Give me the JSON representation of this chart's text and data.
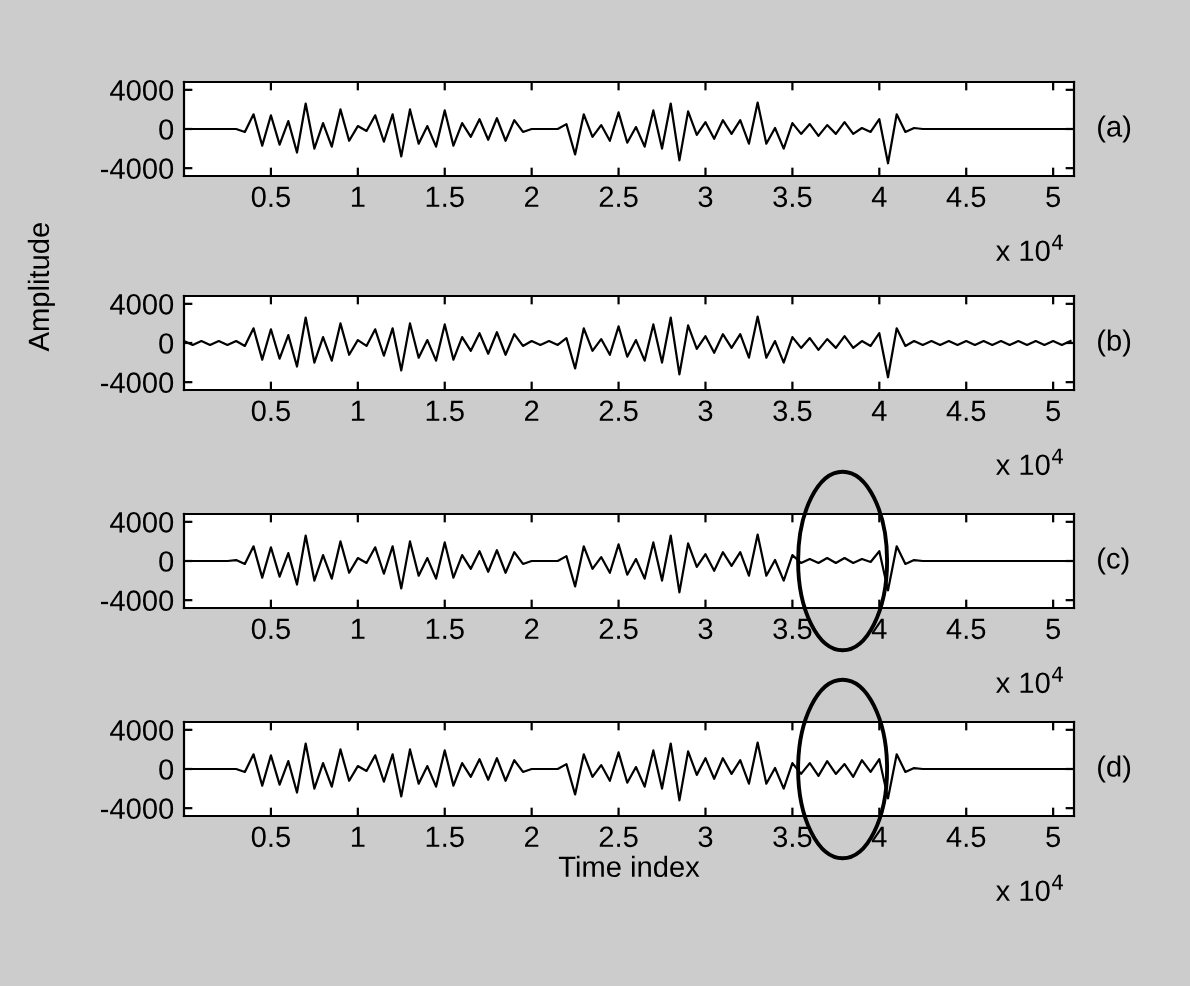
{
  "chart_data": [
    {
      "type": "line",
      "x": [
        0,
        0.05,
        0.1,
        0.15,
        0.2,
        0.25,
        0.3,
        0.35,
        0.4,
        0.45,
        0.5,
        0.55,
        0.6,
        0.65,
        0.7,
        0.75,
        0.8,
        0.85,
        0.9,
        0.95,
        1,
        1.05,
        1.1,
        1.15,
        1.2,
        1.25,
        1.3,
        1.35,
        1.4,
        1.45,
        1.5,
        1.55,
        1.6,
        1.65,
        1.7,
        1.75,
        1.8,
        1.85,
        1.9,
        1.95,
        2,
        2.05,
        2.1,
        2.15,
        2.2,
        2.25,
        2.3,
        2.35,
        2.4,
        2.45,
        2.5,
        2.55,
        2.6,
        2.65,
        2.7,
        2.75,
        2.8,
        2.85,
        2.9,
        2.95,
        3,
        3.05,
        3.1,
        3.15,
        3.2,
        3.25,
        3.3,
        3.35,
        3.4,
        3.45,
        3.5,
        3.55,
        3.6,
        3.65,
        3.7,
        3.75,
        3.8,
        3.85,
        3.9,
        3.95,
        4,
        4.05,
        4.1,
        4.15,
        4.2,
        4.25,
        4.3,
        4.35,
        4.4,
        4.45,
        4.5,
        4.55,
        4.6,
        4.65,
        4.7,
        4.75,
        4.8,
        4.85,
        4.9,
        4.95,
        5,
        5.05,
        5.1
      ],
      "series": [
        {
          "color": "#000000",
          "values": [
            0,
            0,
            0,
            0,
            0,
            0,
            0,
            -300,
            1500,
            -1700,
            1400,
            -1600,
            800,
            -2400,
            2600,
            -2000,
            600,
            -1800,
            2000,
            -1200,
            300,
            -200,
            1400,
            -1300,
            1500,
            -2800,
            2000,
            -1500,
            300,
            -1800,
            1900,
            -1700,
            600,
            -800,
            1000,
            -1100,
            1100,
            -1200,
            900,
            -300,
            0,
            0,
            0,
            0,
            500,
            -2600,
            1500,
            -800,
            400,
            -1200,
            1700,
            -1400,
            200,
            -1800,
            1900,
            -2000,
            2600,
            -3200,
            1800,
            -600,
            700,
            -1000,
            900,
            -500,
            900,
            -1500,
            2700,
            -1500,
            100,
            -2000,
            600,
            -500,
            500,
            -700,
            400,
            -500,
            700,
            -500,
            100,
            -300,
            1000,
            -3500,
            1500,
            -300,
            100,
            0,
            0,
            0,
            0,
            0,
            0,
            0,
            0,
            0,
            0,
            0,
            0,
            0,
            0,
            0,
            0,
            0,
            0
          ]
        }
      ],
      "xlim": [
        0,
        5.12
      ],
      "ylim": [
        -4800,
        4800
      ],
      "xticks": [
        0.5,
        1,
        1.5,
        2,
        2.5,
        3,
        3.5,
        4,
        4.5,
        5
      ],
      "yticks": [
        -4000,
        0,
        4000
      ],
      "line_style": "solid",
      "marker": "none",
      "annotations": [
        "(a)",
        "x 10$^{4}$"
      ]
    },
    {
      "type": "line",
      "x": [
        0,
        0.05,
        0.1,
        0.15,
        0.2,
        0.25,
        0.3,
        0.35,
        0.4,
        0.45,
        0.5,
        0.55,
        0.6,
        0.65,
        0.7,
        0.75,
        0.8,
        0.85,
        0.9,
        0.95,
        1,
        1.05,
        1.1,
        1.15,
        1.2,
        1.25,
        1.3,
        1.35,
        1.4,
        1.45,
        1.5,
        1.55,
        1.6,
        1.65,
        1.7,
        1.75,
        1.8,
        1.85,
        1.9,
        1.95,
        2,
        2.05,
        2.1,
        2.15,
        2.2,
        2.25,
        2.3,
        2.35,
        2.4,
        2.45,
        2.5,
        2.55,
        2.6,
        2.65,
        2.7,
        2.75,
        2.8,
        2.85,
        2.9,
        2.95,
        3,
        3.05,
        3.1,
        3.15,
        3.2,
        3.25,
        3.3,
        3.35,
        3.4,
        3.45,
        3.5,
        3.55,
        3.6,
        3.65,
        3.7,
        3.75,
        3.8,
        3.85,
        3.9,
        3.95,
        4,
        4.05,
        4.1,
        4.15,
        4.2,
        4.25,
        4.3,
        4.35,
        4.4,
        4.45,
        4.5,
        4.55,
        4.6,
        4.65,
        4.7,
        4.75,
        4.8,
        4.85,
        4.9,
        4.95,
        5,
        5.05,
        5.1
      ],
      "series": [
        {
          "color": "#000000",
          "values": [
            200,
            -200,
            200,
            -200,
            200,
            -200,
            200,
            -300,
            1500,
            -1700,
            1400,
            -1600,
            800,
            -2400,
            2600,
            -2000,
            600,
            -1800,
            2000,
            -1200,
            300,
            -300,
            1400,
            -1300,
            1500,
            -2800,
            2000,
            -1500,
            300,
            -1800,
            1900,
            -1700,
            600,
            -800,
            1000,
            -1100,
            1100,
            -1200,
            900,
            -300,
            200,
            -200,
            200,
            -200,
            500,
            -2600,
            1500,
            -800,
            400,
            -1200,
            1700,
            -1400,
            300,
            -1800,
            1900,
            -2000,
            2600,
            -3200,
            1800,
            -600,
            700,
            -1000,
            900,
            -500,
            900,
            -1500,
            2700,
            -1500,
            200,
            -2000,
            600,
            -500,
            500,
            -700,
            400,
            -500,
            700,
            -500,
            200,
            -300,
            1000,
            -3500,
            1500,
            -300,
            200,
            -200,
            200,
            -200,
            200,
            -200,
            200,
            -200,
            200,
            -200,
            200,
            -200,
            200,
            -200,
            200,
            -200,
            200,
            -200,
            200
          ]
        }
      ],
      "xlim": [
        0,
        5.12
      ],
      "ylim": [
        -4800,
        4800
      ],
      "xticks": [
        0.5,
        1,
        1.5,
        2,
        2.5,
        3,
        3.5,
        4,
        4.5,
        5
      ],
      "yticks": [
        -4000,
        0,
        4000
      ],
      "line_style": "solid",
      "marker": "none",
      "ylabel": "Amplitude",
      "annotations": [
        "(b)",
        "x 10$^{4}$"
      ]
    },
    {
      "type": "line",
      "x": [
        0,
        0.05,
        0.1,
        0.15,
        0.2,
        0.25,
        0.3,
        0.35,
        0.4,
        0.45,
        0.5,
        0.55,
        0.6,
        0.65,
        0.7,
        0.75,
        0.8,
        0.85,
        0.9,
        0.95,
        1,
        1.05,
        1.1,
        1.15,
        1.2,
        1.25,
        1.3,
        1.35,
        1.4,
        1.45,
        1.5,
        1.55,
        1.6,
        1.65,
        1.7,
        1.75,
        1.8,
        1.85,
        1.9,
        1.95,
        2,
        2.05,
        2.1,
        2.15,
        2.2,
        2.25,
        2.3,
        2.35,
        2.4,
        2.45,
        2.5,
        2.55,
        2.6,
        2.65,
        2.7,
        2.75,
        2.8,
        2.85,
        2.9,
        2.95,
        3,
        3.05,
        3.1,
        3.15,
        3.2,
        3.25,
        3.3,
        3.35,
        3.4,
        3.45,
        3.5,
        3.55,
        3.6,
        3.65,
        3.7,
        3.75,
        3.8,
        3.85,
        3.9,
        3.95,
        4,
        4.05,
        4.1,
        4.15,
        4.2,
        4.25,
        4.3,
        4.35,
        4.4,
        4.45,
        4.5,
        4.55,
        4.6,
        4.65,
        4.7,
        4.75,
        4.8,
        4.85,
        4.9,
        4.95,
        5,
        5.05,
        5.1
      ],
      "series": [
        {
          "color": "#000000",
          "values": [
            0,
            0,
            0,
            0,
            0,
            0,
            100,
            -300,
            1500,
            -1700,
            1400,
            -1600,
            800,
            -2400,
            2600,
            -2000,
            600,
            -1800,
            2000,
            -1200,
            300,
            -200,
            1400,
            -1300,
            1500,
            -2800,
            2000,
            -1500,
            300,
            -1800,
            1900,
            -1700,
            600,
            -800,
            1000,
            -1100,
            1100,
            -1200,
            900,
            -300,
            0,
            0,
            0,
            0,
            500,
            -2600,
            1500,
            -800,
            400,
            -1200,
            1700,
            -1400,
            200,
            -1800,
            1900,
            -2000,
            2600,
            -3200,
            1800,
            -600,
            700,
            -1000,
            900,
            -500,
            900,
            -1500,
            2700,
            -1500,
            100,
            -2000,
            600,
            -200,
            200,
            -200,
            300,
            -200,
            300,
            -200,
            200,
            -100,
            1000,
            -3000,
            1500,
            -300,
            100,
            0,
            0,
            0,
            0,
            0,
            0,
            0,
            0,
            0,
            0,
            0,
            0,
            0,
            0,
            0,
            0,
            0,
            0
          ]
        }
      ],
      "xlim": [
        0,
        5.12
      ],
      "ylim": [
        -4800,
        4800
      ],
      "xticks": [
        0.5,
        1,
        1.5,
        2,
        2.5,
        3,
        3.5,
        4,
        4.5,
        5
      ],
      "yticks": [
        -4000,
        0,
        4000
      ],
      "line_style": "solid",
      "marker": "none",
      "annotations": [
        "(c)",
        "x 10$^{4}$"
      ]
    },
    {
      "type": "line",
      "x": [
        0,
        0.05,
        0.1,
        0.15,
        0.2,
        0.25,
        0.3,
        0.35,
        0.4,
        0.45,
        0.5,
        0.55,
        0.6,
        0.65,
        0.7,
        0.75,
        0.8,
        0.85,
        0.9,
        0.95,
        1,
        1.05,
        1.1,
        1.15,
        1.2,
        1.25,
        1.3,
        1.35,
        1.4,
        1.45,
        1.5,
        1.55,
        1.6,
        1.65,
        1.7,
        1.75,
        1.8,
        1.85,
        1.9,
        1.95,
        2,
        2.05,
        2.1,
        2.15,
        2.2,
        2.25,
        2.3,
        2.35,
        2.4,
        2.45,
        2.5,
        2.55,
        2.6,
        2.65,
        2.7,
        2.75,
        2.8,
        2.85,
        2.9,
        2.95,
        3,
        3.05,
        3.1,
        3.15,
        3.2,
        3.25,
        3.3,
        3.35,
        3.4,
        3.45,
        3.5,
        3.55,
        3.6,
        3.65,
        3.7,
        3.75,
        3.8,
        3.85,
        3.9,
        3.95,
        4,
        4.05,
        4.1,
        4.15,
        4.2,
        4.25,
        4.3,
        4.35,
        4.4,
        4.45,
        4.5,
        4.55,
        4.6,
        4.65,
        4.7,
        4.75,
        4.8,
        4.85,
        4.9,
        4.95,
        5,
        5.05,
        5.1
      ],
      "series": [
        {
          "color": "#000000",
          "values": [
            0,
            0,
            0,
            0,
            0,
            0,
            0,
            -300,
            1500,
            -1700,
            1400,
            -1600,
            800,
            -2400,
            2600,
            -2000,
            600,
            -1800,
            2000,
            -1200,
            300,
            -200,
            1400,
            -1300,
            1500,
            -2800,
            2000,
            -1500,
            300,
            -1800,
            1900,
            -1700,
            600,
            -800,
            1000,
            -1100,
            1100,
            -1200,
            900,
            -300,
            0,
            0,
            0,
            0,
            500,
            -2600,
            1500,
            -800,
            400,
            -1200,
            1700,
            -1400,
            200,
            -1800,
            1900,
            -2000,
            2600,
            -3200,
            1800,
            -600,
            1100,
            -1000,
            1100,
            -500,
            900,
            -1500,
            2700,
            -1500,
            100,
            -2000,
            600,
            -500,
            600,
            -700,
            800,
            -500,
            500,
            -800,
            900,
            -300,
            1000,
            -3000,
            1500,
            -300,
            100,
            0,
            0,
            0,
            0,
            0,
            0,
            0,
            0,
            0,
            0,
            0,
            0,
            0,
            0,
            0,
            0,
            0,
            0
          ]
        }
      ],
      "xlim": [
        0,
        5.12
      ],
      "ylim": [
        -4800,
        4800
      ],
      "xticks": [
        0.5,
        1,
        1.5,
        2,
        2.5,
        3,
        3.5,
        4,
        4.5,
        5
      ],
      "yticks": [
        -4000,
        0,
        4000
      ],
      "line_style": "solid",
      "marker": "none",
      "xlabel": "Time index",
      "annotations": [
        "(d)",
        "x 10$^{4}$"
      ]
    }
  ]
}
